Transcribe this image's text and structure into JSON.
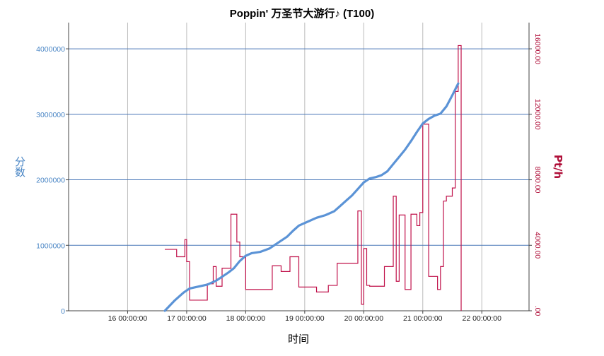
{
  "chart_data": {
    "type": "line",
    "title": "Poppin' 万圣节大游行♪ (T100)",
    "xlabel": "时间",
    "ylabel_left": "分数",
    "ylabel_right": "Pt/h",
    "grid": true,
    "x_ticks": [
      "16 00:00:00",
      "17 00:00:00",
      "18 00:00:00",
      "19 00:00:00",
      "20 00:00:00",
      "21 00:00:00",
      "22 00:00:00"
    ],
    "x_tick_values": [
      16,
      17,
      18,
      19,
      20,
      21,
      22
    ],
    "xlim": [
      15.0,
      22.8
    ],
    "y_left_ticks": [
      "0",
      "1000000",
      "2000000",
      "3000000",
      "4000000"
    ],
    "y_left_tick_values": [
      0,
      1000000,
      2000000,
      3000000,
      4000000
    ],
    "ylim_left": [
      0,
      4400000
    ],
    "y_right_ticks": [
      ".00",
      "4000.00",
      "8000.00",
      "12000.00",
      "16000.00"
    ],
    "y_right_tick_values": [
      0,
      4000,
      8000,
      12000,
      16000
    ],
    "ylim_right": [
      0,
      17600
    ],
    "colors": {
      "score": "#5b93d6",
      "pth": "#c0114a",
      "grid": "#4a78b8",
      "vgrid": "#bbbbbb"
    },
    "series": [
      {
        "axis": "left",
        "color": "#5b93d6",
        "x": [
          16.63,
          16.8,
          16.95,
          17.05,
          17.2,
          17.35,
          17.5,
          17.6,
          17.7,
          17.8,
          17.9,
          18.0,
          18.1,
          18.25,
          18.4,
          18.55,
          18.7,
          18.8,
          18.9,
          18.95,
          19.05,
          19.2,
          19.35,
          19.5,
          19.6,
          19.7,
          19.8,
          19.9,
          20.0,
          20.1,
          20.2,
          20.3,
          20.4,
          20.5,
          20.6,
          20.7,
          20.8,
          20.9,
          21.0,
          21.1,
          21.2,
          21.3,
          21.4,
          21.5,
          21.6
        ],
        "values": [
          0,
          160000,
          280000,
          340000,
          370000,
          400000,
          460000,
          520000,
          580000,
          650000,
          760000,
          840000,
          880000,
          900000,
          950000,
          1040000,
          1130000,
          1220000,
          1300000,
          1320000,
          1360000,
          1420000,
          1460000,
          1520000,
          1600000,
          1680000,
          1760000,
          1860000,
          1960000,
          2020000,
          2040000,
          2070000,
          2130000,
          2240000,
          2350000,
          2460000,
          2590000,
          2730000,
          2860000,
          2930000,
          2980000,
          3010000,
          3120000,
          3290000,
          3470000
        ]
      },
      {
        "axis": "right",
        "color": "#c0114a",
        "step": true,
        "x": [
          16.63,
          16.83,
          16.97,
          17.0,
          17.05,
          17.35,
          17.45,
          17.5,
          17.6,
          17.75,
          17.85,
          17.9,
          18.0,
          18.45,
          18.6,
          18.75,
          18.9,
          19.2,
          19.4,
          19.55,
          19.9,
          19.96,
          20.0,
          20.05,
          20.1,
          20.35,
          20.5,
          20.55,
          20.6,
          20.7,
          20.8,
          20.9,
          20.95,
          21.0,
          21.1,
          21.25,
          21.3,
          21.35,
          21.4,
          21.5,
          21.55,
          21.6,
          21.65
        ],
        "values": [
          3750,
          3300,
          4350,
          3000,
          650,
          1650,
          2700,
          1500,
          2600,
          5900,
          4200,
          3300,
          1300,
          2750,
          2400,
          3300,
          1450,
          1150,
          1550,
          2900,
          6100,
          400,
          3800,
          1550,
          1500,
          2700,
          7000,
          1800,
          5850,
          1300,
          5900,
          5200,
          6000,
          11400,
          2100,
          1300,
          2700,
          6700,
          7000,
          7500,
          13400,
          16200,
          0
        ]
      }
    ]
  }
}
